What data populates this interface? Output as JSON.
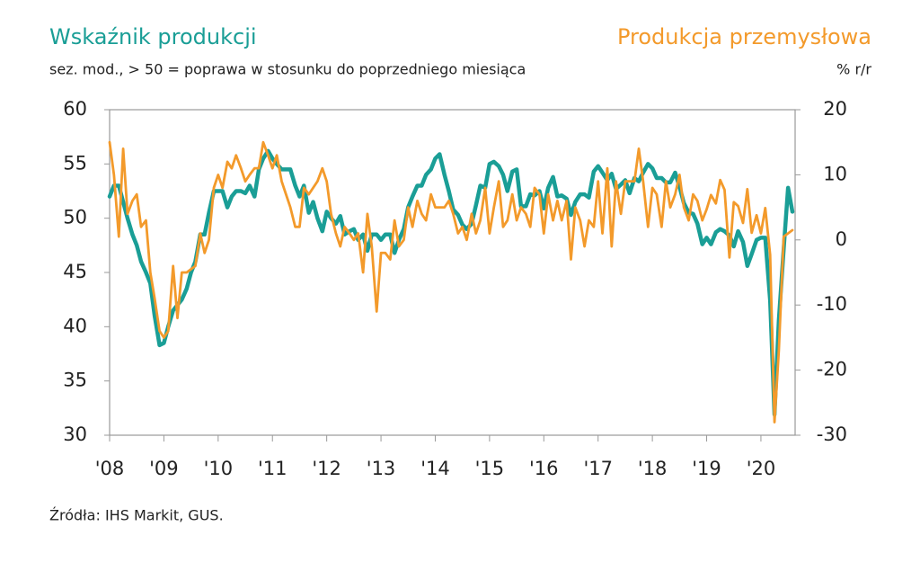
{
  "chart_data": {
    "type": "line",
    "subtitle": "sez. mod., > 50 = poprawa w stosunku do poprzedniego miesiąca",
    "y2_unit": "% r/r",
    "source": "Źródła: IHS Markit, GUS.",
    "xlim": [
      2008,
      2020.63
    ],
    "xticks": [
      {
        "value": 2008,
        "label": "'08"
      },
      {
        "value": 2009,
        "label": "'09"
      },
      {
        "value": 2010,
        "label": "'10"
      },
      {
        "value": 2011,
        "label": "'11"
      },
      {
        "value": 2012,
        "label": "'12"
      },
      {
        "value": 2013,
        "label": "'13"
      },
      {
        "value": 2014,
        "label": "'14"
      },
      {
        "value": 2015,
        "label": "'15"
      },
      {
        "value": 2016,
        "label": "'16"
      },
      {
        "value": 2017,
        "label": "'17"
      },
      {
        "value": 2018,
        "label": "'18"
      },
      {
        "value": 2019,
        "label": "'19"
      },
      {
        "value": 2020,
        "label": "'20"
      }
    ],
    "ylim": [
      30,
      60
    ],
    "yticks": [
      30,
      35,
      40,
      45,
      50,
      55,
      60
    ],
    "y2lim": [
      -30,
      20
    ],
    "y2ticks": [
      -30,
      -20,
      -10,
      0,
      10,
      20
    ],
    "grid": false,
    "x": [
      2008,
      2008.08,
      2008.17,
      2008.25,
      2008.33,
      2008.42,
      2008.5,
      2008.58,
      2008.67,
      2008.75,
      2008.83,
      2008.92,
      2009,
      2009.08,
      2009.17,
      2009.25,
      2009.33,
      2009.42,
      2009.5,
      2009.58,
      2009.67,
      2009.75,
      2009.83,
      2009.92,
      2010,
      2010.08,
      2010.17,
      2010.25,
      2010.33,
      2010.42,
      2010.5,
      2010.58,
      2010.67,
      2010.75,
      2010.83,
      2010.92,
      2011,
      2011.08,
      2011.17,
      2011.25,
      2011.33,
      2011.42,
      2011.5,
      2011.58,
      2011.67,
      2011.75,
      2011.83,
      2011.92,
      2012,
      2012.08,
      2012.17,
      2012.25,
      2012.33,
      2012.42,
      2012.5,
      2012.58,
      2012.67,
      2012.75,
      2012.83,
      2012.92,
      2013,
      2013.08,
      2013.17,
      2013.25,
      2013.33,
      2013.42,
      2013.5,
      2013.58,
      2013.67,
      2013.75,
      2013.83,
      2013.92,
      2014,
      2014.08,
      2014.17,
      2014.25,
      2014.33,
      2014.42,
      2014.5,
      2014.58,
      2014.67,
      2014.75,
      2014.83,
      2014.92,
      2015,
      2015.08,
      2015.17,
      2015.25,
      2015.33,
      2015.42,
      2015.5,
      2015.58,
      2015.67,
      2015.75,
      2015.83,
      2015.92,
      2016,
      2016.08,
      2016.17,
      2016.25,
      2016.33,
      2016.42,
      2016.5,
      2016.58,
      2016.67,
      2016.75,
      2016.83,
      2016.92,
      2017,
      2017.08,
      2017.17,
      2017.25,
      2017.33,
      2017.42,
      2017.5,
      2017.58,
      2017.67,
      2017.75,
      2017.83,
      2017.92,
      2018,
      2018.08,
      2018.17,
      2018.25,
      2018.33,
      2018.42,
      2018.5,
      2018.58,
      2018.67,
      2018.75,
      2018.83,
      2018.92,
      2019,
      2019.08,
      2019.17,
      2019.25,
      2019.33,
      2019.42,
      2019.5,
      2019.58,
      2019.67,
      2019.75,
      2019.83,
      2019.92,
      2020,
      2020.08,
      2020.17,
      2020.25,
      2020.33,
      2020.42,
      2020.5,
      2020.58
    ],
    "series": [
      {
        "name": "Wskaźnik produkcji",
        "color": "#1a9e96",
        "axis": "y",
        "values": [
          52,
          53,
          53,
          51.5,
          50,
          48.5,
          47.5,
          46,
          45,
          44,
          41,
          38.3,
          38.5,
          40,
          41.5,
          42,
          42.5,
          43.5,
          45,
          46,
          48.5,
          48.5,
          50.5,
          52.5,
          52.5,
          52.5,
          51,
          52,
          52.5,
          52.5,
          52.3,
          53,
          52,
          54.5,
          55.5,
          56.2,
          55.5,
          55,
          54.5,
          54.5,
          54.5,
          53,
          52,
          53,
          50.5,
          51.5,
          50,
          48.8,
          50.6,
          50,
          49.5,
          50.2,
          48.5,
          48.8,
          49,
          48,
          48.5,
          47,
          48.5,
          48.5,
          48,
          48.5,
          48.5,
          46.8,
          48,
          49,
          51,
          52,
          53,
          53,
          54,
          54.5,
          55.5,
          55.9,
          54,
          52.5,
          50.8,
          50.3,
          49.4,
          49,
          49.5,
          51.2,
          53,
          52.8,
          55,
          55.2,
          54.8,
          54,
          52.5,
          54.3,
          54.5,
          51.1,
          51.1,
          52.2,
          52.1,
          52.5,
          50.9,
          52.8,
          53.8,
          52,
          52.1,
          51.8,
          50.3,
          51.5,
          52.2,
          52.2,
          51.9,
          54.3,
          54.8,
          54.2,
          53.5,
          54.1,
          52.7,
          53.1,
          53.5,
          52.3,
          53.7,
          53.4,
          54.2,
          55,
          54.6,
          53.7,
          53.7,
          53.3,
          53.3,
          54.2,
          52.9,
          51.4,
          50.5,
          50.4,
          49.5,
          47.6,
          48.2,
          47.6,
          48.7,
          49,
          48.8,
          48.4,
          47.4,
          48.8,
          47.8,
          45.6,
          46.7,
          48,
          48.2,
          48.2,
          42.4,
          31.9,
          40.6,
          47.2,
          52.8,
          50.6
        ]
      },
      {
        "name": "Produkcja przemysłowa",
        "color": "#f39a2b",
        "axis": "y2",
        "values": [
          15,
          10,
          0.5,
          14,
          4,
          6,
          7,
          2,
          3,
          -5,
          -9,
          -14,
          -15,
          -14,
          -4,
          -12,
          -5,
          -5,
          -4.5,
          -4,
          1,
          -2,
          0,
          8,
          10,
          8,
          12,
          11,
          13,
          11,
          9,
          10,
          11,
          11,
          15,
          13,
          11,
          13,
          9,
          7,
          5,
          2,
          2,
          8,
          7,
          8,
          9,
          11,
          9,
          4,
          1,
          -1,
          2,
          1,
          0,
          1,
          -5,
          4,
          -1,
          -11,
          -2,
          -2,
          -3,
          3,
          -1,
          0,
          5,
          2,
          6,
          4,
          3,
          7,
          5,
          5,
          5,
          6,
          4,
          1,
          2,
          0,
          4,
          1,
          3,
          8,
          1,
          5,
          9,
          2,
          3,
          7,
          3,
          5,
          4,
          2,
          8,
          7,
          1,
          7,
          3,
          6,
          3,
          6,
          -3,
          5,
          3,
          -1,
          3,
          2,
          9,
          1,
          11,
          -1,
          9,
          4,
          9,
          9,
          9,
          14,
          9,
          2,
          8,
          7,
          2,
          9,
          5,
          7,
          10,
          5,
          3,
          7,
          6,
          3,
          4.7,
          6.9,
          5.6,
          9.2,
          7.7,
          -2.7,
          5.8,
          5.2,
          2.6,
          7.8,
          1.1,
          3.8,
          1,
          4.9,
          -2.3,
          -28,
          -17,
          0.5,
          1,
          1.5
        ]
      }
    ]
  }
}
